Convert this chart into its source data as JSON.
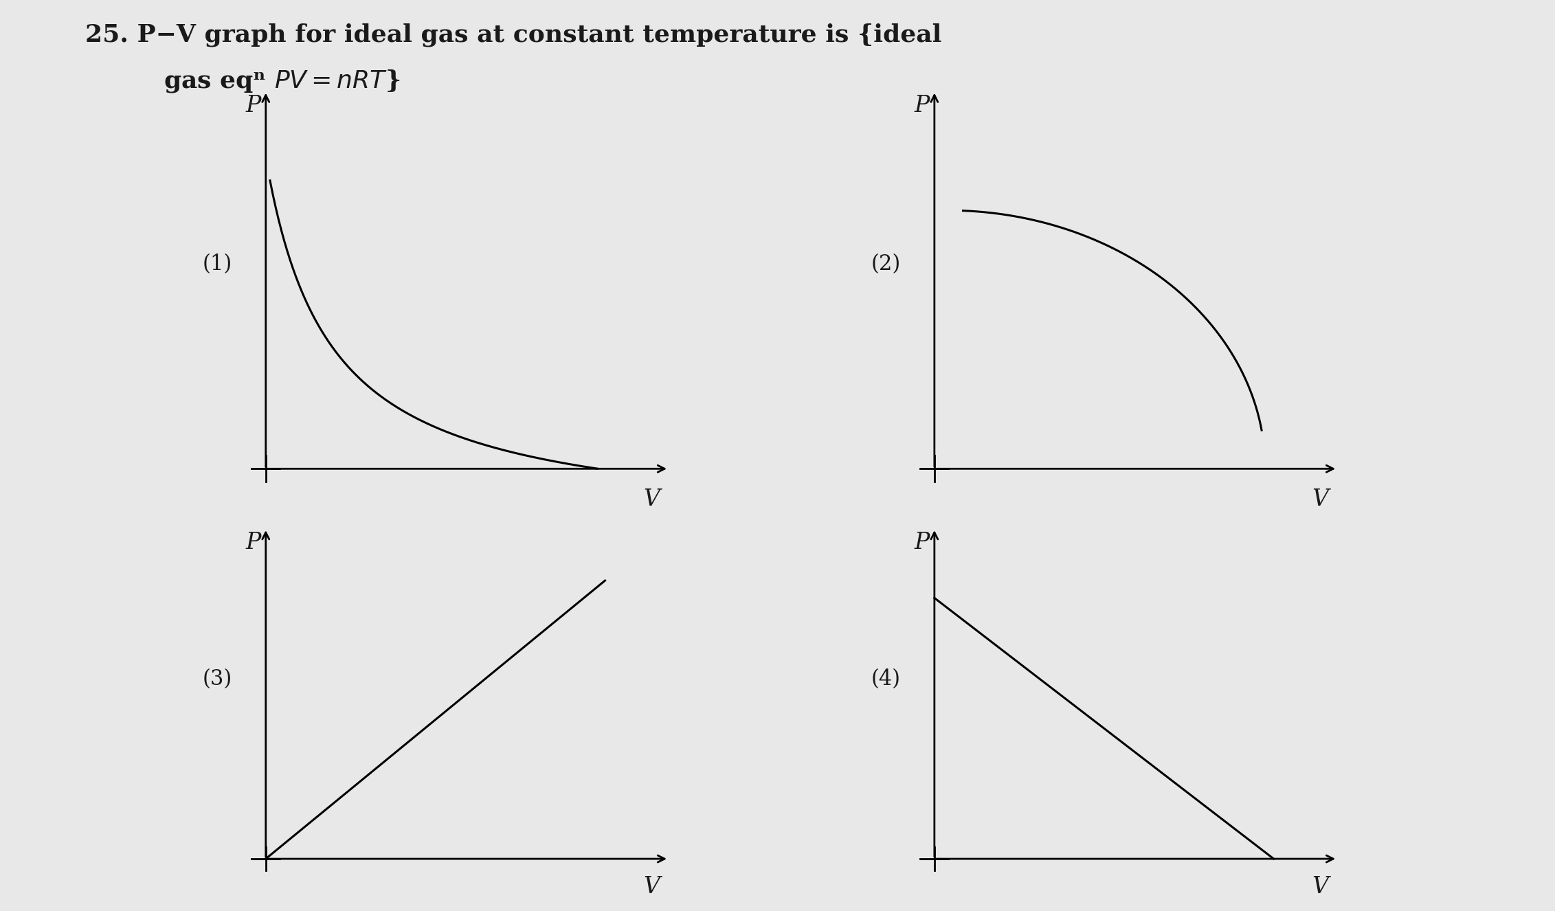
{
  "background_color": "#e8e8e8",
  "text_color": "#1a1a1a",
  "font_size_title": 26,
  "font_size_labels": 24,
  "font_size_numbers": 22,
  "subplot_labels": [
    "(1)",
    "(2)",
    "(3)",
    "(4)"
  ],
  "axis_label_P": "P",
  "axis_label_V": "V",
  "line_width": 2.2,
  "arrow_lw": 2.0
}
